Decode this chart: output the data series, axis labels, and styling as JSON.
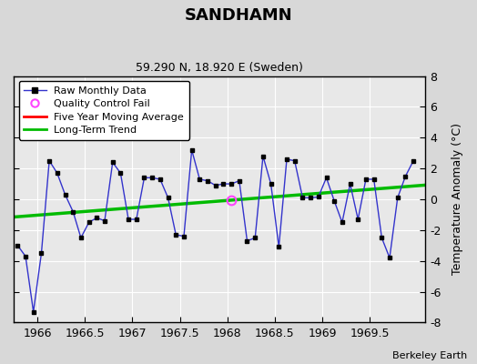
{
  "title": "SANDHAMN",
  "subtitle": "59.290 N, 18.920 E (Sweden)",
  "ylabel": "Temperature Anomaly (°C)",
  "credit": "Berkeley Earth",
  "xlim": [
    1965.75,
    1970.08
  ],
  "ylim": [
    -8,
    8
  ],
  "xticks": [
    1966,
    1966.5,
    1967,
    1967.5,
    1968,
    1968.5,
    1969,
    1969.5
  ],
  "yticks": [
    -8,
    -6,
    -4,
    -2,
    0,
    2,
    4,
    6,
    8
  ],
  "bg_outer": "#d8d8d8",
  "bg_inner": "#e8e8e8",
  "raw_x": [
    1965.792,
    1965.875,
    1965.958,
    1966.042,
    1966.125,
    1966.208,
    1966.292,
    1966.375,
    1966.458,
    1966.542,
    1966.625,
    1966.708,
    1966.792,
    1966.875,
    1966.958,
    1967.042,
    1967.125,
    1967.208,
    1967.292,
    1967.375,
    1967.458,
    1967.542,
    1967.625,
    1967.708,
    1967.792,
    1967.875,
    1967.958,
    1968.042,
    1968.125,
    1968.208,
    1968.292,
    1968.375,
    1968.458,
    1968.542,
    1968.625,
    1968.708,
    1968.792,
    1968.875,
    1968.958,
    1969.042,
    1969.125,
    1969.208,
    1969.292,
    1969.375,
    1969.458,
    1969.542,
    1969.625,
    1969.708,
    1969.792,
    1969.875,
    1969.958
  ],
  "raw_y": [
    -3.0,
    -3.7,
    -7.3,
    -3.5,
    2.5,
    1.7,
    0.3,
    -0.8,
    -2.5,
    -1.5,
    -1.2,
    -1.4,
    2.4,
    1.7,
    -1.3,
    -1.3,
    1.4,
    1.4,
    1.3,
    0.1,
    -2.3,
    -2.4,
    3.2,
    1.3,
    1.2,
    0.9,
    1.0,
    1.0,
    1.2,
    -2.7,
    -2.5,
    2.8,
    1.0,
    -3.1,
    2.6,
    2.5,
    0.1,
    0.1,
    0.15,
    1.4,
    -0.1,
    -1.5,
    1.0,
    -1.3,
    1.3,
    1.3,
    -2.5,
    -3.8,
    0.1,
    1.5,
    2.5
  ],
  "qc_fail_x": [
    1968.042
  ],
  "qc_fail_y": [
    -0.05
  ],
  "trend_x": [
    1965.75,
    1970.08
  ],
  "trend_y": [
    -1.15,
    0.92
  ],
  "line_color": "#3333cc",
  "dot_color": "#000000",
  "trend_color": "#00bb00",
  "qc_color": "#ff44ff",
  "ma_color": "#ff0000"
}
